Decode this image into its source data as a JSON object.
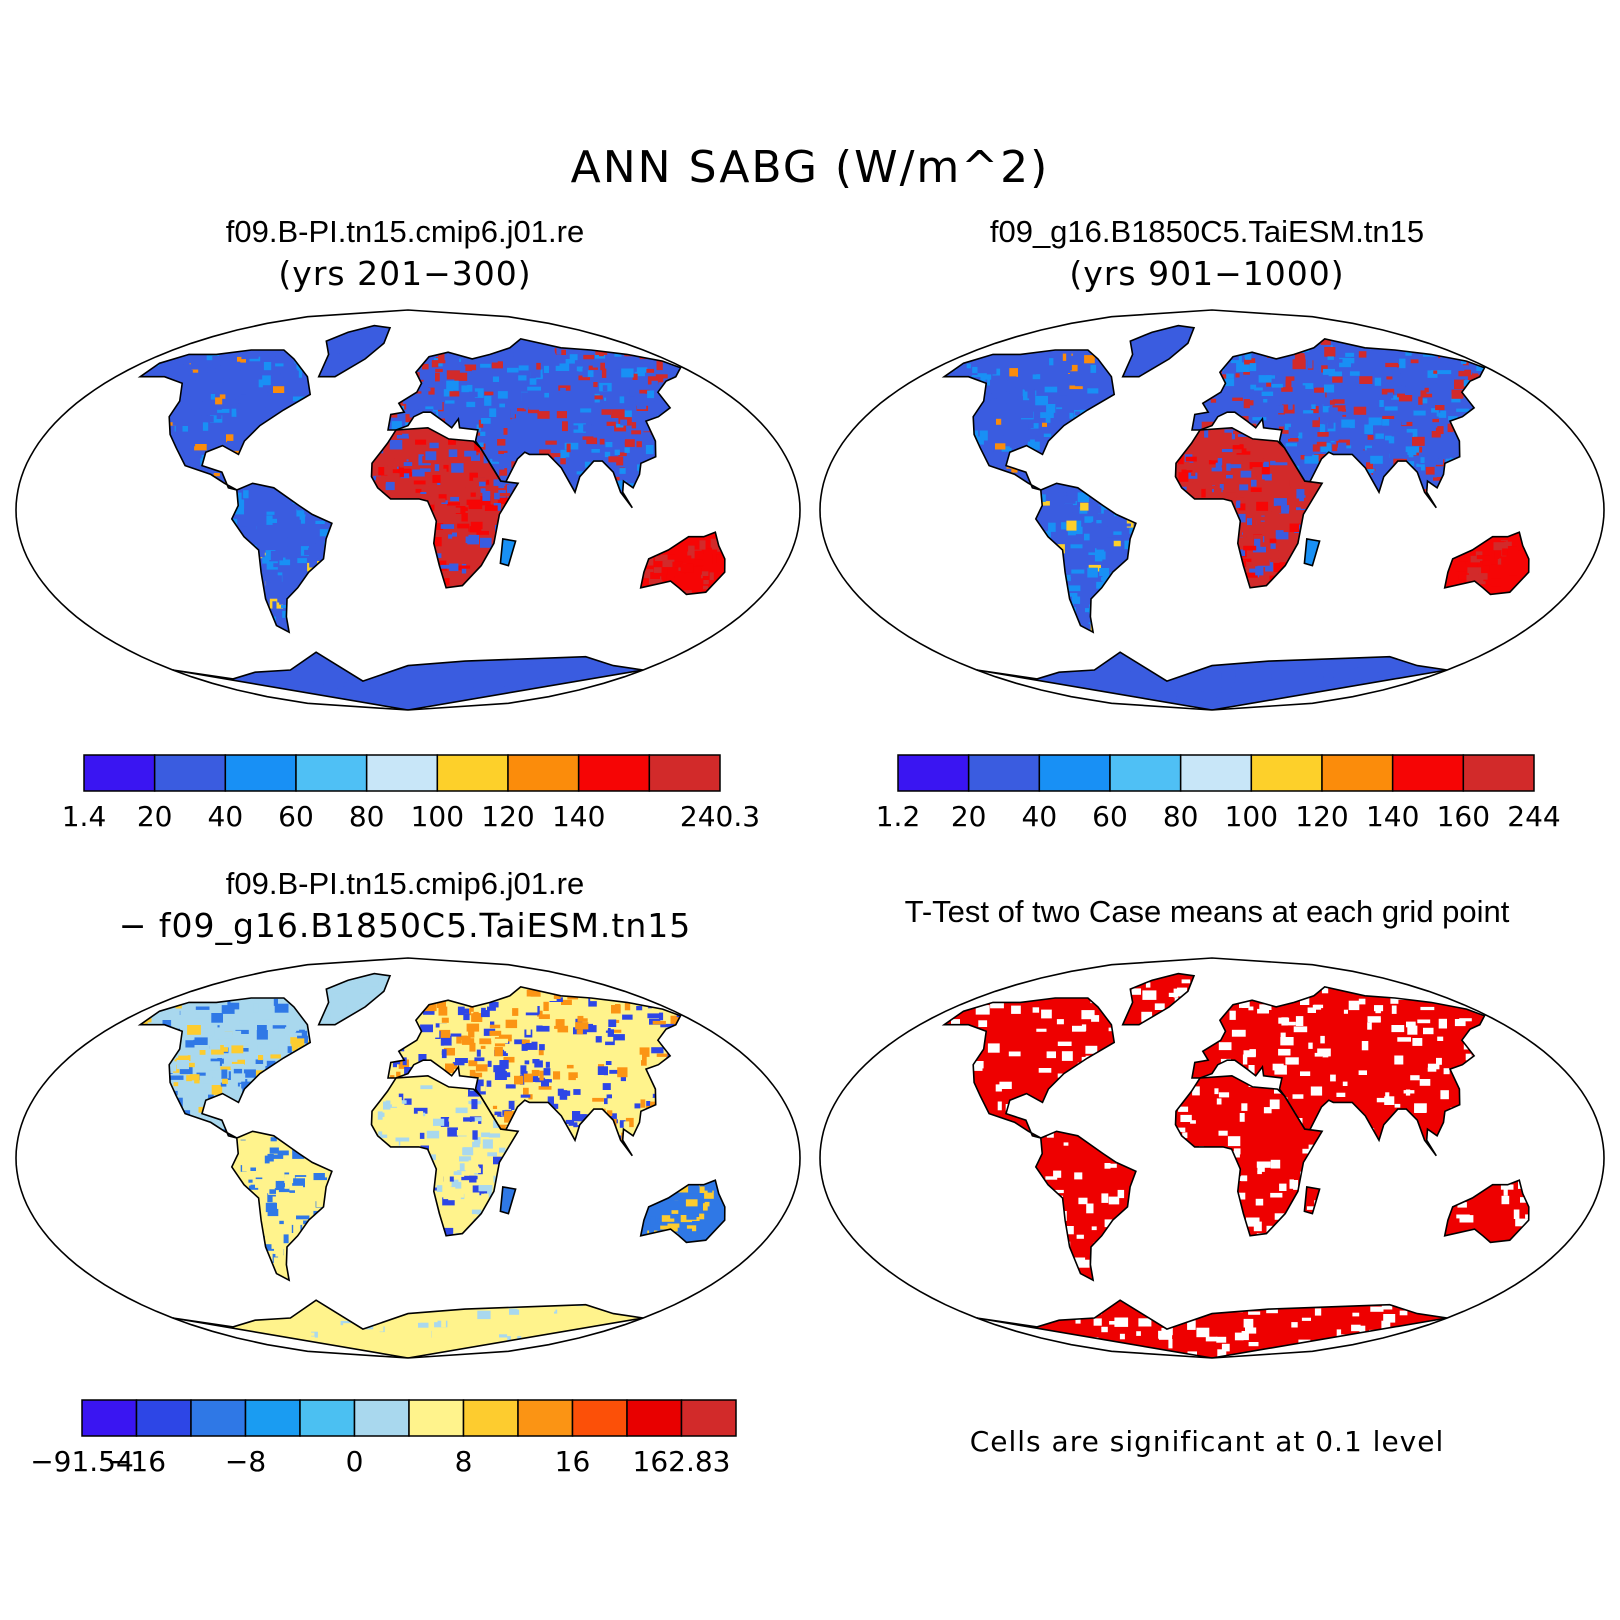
{
  "title": "ANN SABG (W/m^2)",
  "colors": {
    "ocean": "#ffffff",
    "outline": "#000000",
    "signif": "#ee0000"
  },
  "panels": [
    {
      "id": "case1",
      "title": "f09.B-PI.tn15.cmip6.j01.re",
      "subtitle": "(yrs 201−300)",
      "colorbar": {
        "colors": [
          "#3a15f2",
          "#3a5ce0",
          "#1890f5",
          "#4fc0f5",
          "#c8e6f8",
          "#fdd02a",
          "#fb8c0b",
          "#f60505",
          "#d22a2a"
        ],
        "labels": [
          "1.4",
          "20",
          "40",
          "60",
          "80",
          "100",
          "120",
          "140",
          "",
          "240.3"
        ]
      }
    },
    {
      "id": "case2",
      "title": "f09_g16.B1850C5.TaiESM.tn15",
      "subtitle": "(yrs 901−1000)",
      "colorbar": {
        "colors": [
          "#3a15f2",
          "#3a5ce0",
          "#1890f5",
          "#4fc0f5",
          "#c8e6f8",
          "#fdd02a",
          "#fb8c0b",
          "#f60505",
          "#d22a2a"
        ],
        "labels": [
          "1.2",
          "20",
          "40",
          "60",
          "80",
          "100",
          "120",
          "140",
          "160",
          "244"
        ]
      }
    },
    {
      "id": "diff",
      "title": "f09.B-PI.tn15.cmip6.j01.re",
      "subtitle": "− f09_g16.B1850C5.TaiESM.tn15",
      "colorbar": {
        "colors": [
          "#3a15f2",
          "#2d46e6",
          "#2f78e6",
          "#1a9cf2",
          "#4bc0f2",
          "#a9d8ee",
          "#fff38c",
          "#fdcc2f",
          "#fb9414",
          "#fc5008",
          "#e80000",
          "#d22a2a"
        ],
        "labels": [
          "−91.54",
          "−16",
          "",
          "−8",
          "",
          "0",
          "",
          "8",
          "",
          "16",
          "",
          "162.83",
          ""
        ]
      }
    },
    {
      "id": "ttest",
      "title": "T-Test of two Case means at each grid point",
      "note": "Cells are significant at 0.1 level"
    }
  ]
}
